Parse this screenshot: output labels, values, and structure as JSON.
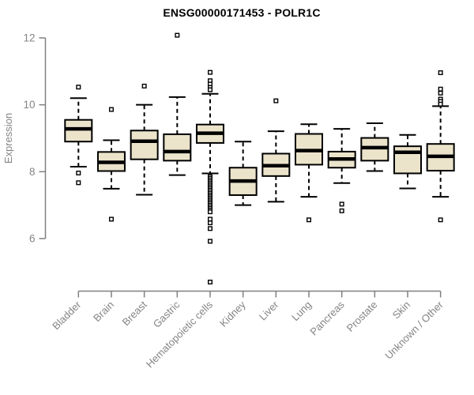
{
  "chart_data": {
    "type": "boxplot",
    "title": "ENSG00000171453 - POLR1C",
    "xlabel": "",
    "ylabel": "Expression",
    "ylim": [
      6,
      12
    ],
    "yticks": [
      6,
      8,
      10,
      12
    ],
    "grid": false,
    "legend": null,
    "style": {
      "box_fill": "#EBE4CB",
      "box_stroke": "#000000",
      "median_color": "#000000",
      "whisker_color": "#000000",
      "outlier_fill": "#ffffff",
      "outlier_stroke": "#000000",
      "axis_color": "#808080",
      "tick_label_color": "#848484",
      "title_color": "#000000"
    },
    "categories": [
      {
        "label": "Bladder",
        "whislo": 8.15,
        "q1": 8.9,
        "med": 9.28,
        "q3": 9.55,
        "whishi": 10.2,
        "outliers": [
          10.53,
          7.96,
          7.67
        ]
      },
      {
        "label": "Brain",
        "whislo": 7.49,
        "q1": 8.02,
        "med": 8.28,
        "q3": 8.59,
        "whishi": 8.94,
        "outliers": [
          9.86,
          6.58
        ]
      },
      {
        "label": "Breast",
        "whislo": 7.31,
        "q1": 8.37,
        "med": 8.91,
        "q3": 9.23,
        "whishi": 10.0,
        "outliers": [
          10.56
        ]
      },
      {
        "label": "Gastric",
        "whislo": 7.9,
        "q1": 8.33,
        "med": 8.6,
        "q3": 9.12,
        "whishi": 10.23,
        "outliers": [
          12.08
        ]
      },
      {
        "label": "Hematopoietic cells",
        "whislo": 7.95,
        "q1": 8.86,
        "med": 9.15,
        "q3": 9.41,
        "whishi": 10.33,
        "outliers": [
          10.97,
          10.72,
          10.62,
          10.52,
          10.45,
          7.85,
          7.8,
          7.75,
          7.7,
          7.65,
          7.6,
          7.55,
          7.5,
          7.45,
          7.4,
          7.35,
          7.3,
          7.25,
          7.2,
          7.15,
          7.1,
          7.05,
          7.0,
          6.95,
          6.9,
          6.85,
          6.8,
          6.58,
          6.47,
          6.3,
          5.92,
          4.7
        ]
      },
      {
        "label": "Kidney",
        "whislo": 7.0,
        "q1": 7.3,
        "med": 7.72,
        "q3": 8.12,
        "whishi": 8.9,
        "outliers": []
      },
      {
        "label": "Liver",
        "whislo": 7.1,
        "q1": 7.87,
        "med": 8.18,
        "q3": 8.54,
        "whishi": 9.21,
        "outliers": [
          10.12
        ]
      },
      {
        "label": "Lung",
        "whislo": 7.25,
        "q1": 8.21,
        "med": 8.63,
        "q3": 9.13,
        "whishi": 9.42,
        "outliers": [
          6.56
        ]
      },
      {
        "label": "Pancreas",
        "whislo": 7.66,
        "q1": 8.12,
        "med": 8.38,
        "q3": 8.6,
        "whishi": 9.28,
        "outliers": [
          7.03,
          6.83
        ]
      },
      {
        "label": "Prostate",
        "whislo": 8.02,
        "q1": 8.33,
        "med": 8.72,
        "q3": 9.01,
        "whishi": 9.45,
        "outliers": []
      },
      {
        "label": "Skin",
        "whislo": 7.5,
        "q1": 7.95,
        "med": 8.58,
        "q3": 8.76,
        "whishi": 9.1,
        "outliers": []
      },
      {
        "label": "Unknown / Other",
        "whislo": 7.25,
        "q1": 8.03,
        "med": 8.46,
        "q3": 8.83,
        "whishi": 9.96,
        "outliers": [
          10.96,
          10.47,
          10.35,
          10.17,
          10.1,
          10.02,
          6.56
        ]
      }
    ]
  }
}
